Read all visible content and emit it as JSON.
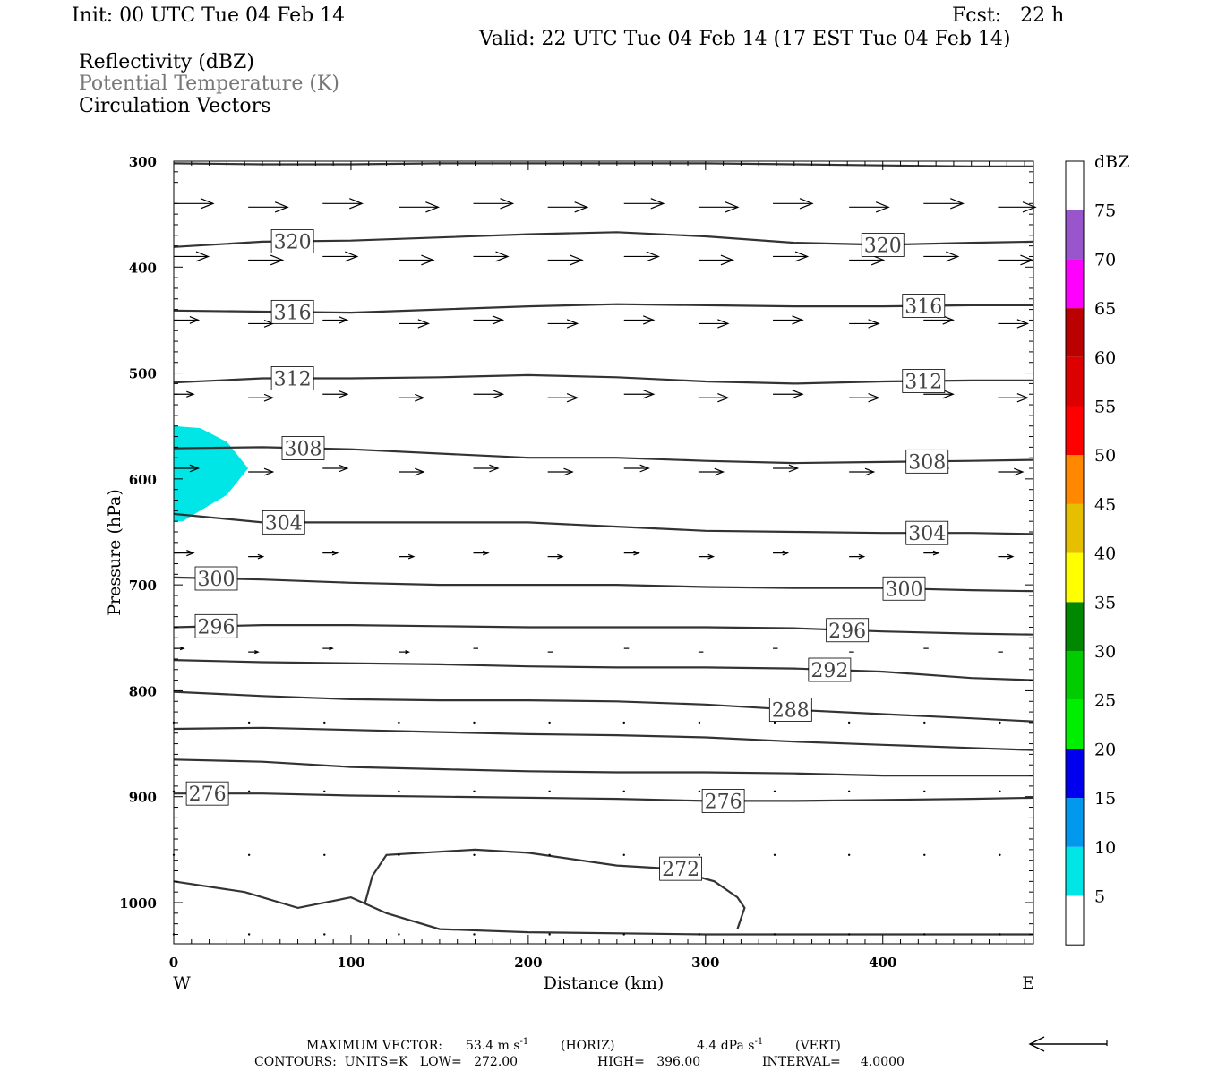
{
  "header": {
    "init": "Init: 00 UTC Tue 04 Feb 14",
    "fcst": "Fcst:   22 h",
    "valid": "Valid: 22 UTC Tue 04 Feb 14 (17 EST Tue 04 Feb 14)",
    "legend": [
      "Reflectivity (dBZ)",
      "Potential Temperature (K)",
      "Circulation Vectors"
    ]
  },
  "chart_data": {
    "type": "contour-cross-section",
    "xlabel": "Distance (km)",
    "ylabel": "Pressure (hPa)",
    "xlim": [
      0,
      485
    ],
    "ylim": [
      300,
      1030
    ],
    "x_ticks": [
      0,
      100,
      200,
      300,
      400
    ],
    "y_ticks": [
      300,
      400,
      500,
      600,
      700,
      800,
      900,
      1000
    ],
    "x_end_labels": {
      "left": "W",
      "right": "E"
    },
    "x": [
      0,
      50,
      100,
      150,
      200,
      250,
      300,
      350,
      400,
      450,
      485
    ],
    "isentropes": [
      {
        "theta": "",
        "p": [
          302,
          303,
          303,
          302,
          302,
          302,
          302,
          303,
          304,
          305,
          305
        ]
      },
      {
        "theta": "320",
        "p": [
          381,
          376,
          375,
          372,
          369,
          367,
          371,
          377,
          379,
          377,
          376
        ]
      },
      {
        "theta": "316",
        "p": [
          441,
          442,
          443,
          440,
          437,
          435,
          436,
          437,
          437,
          436,
          436
        ]
      },
      {
        "theta": "312",
        "p": [
          509,
          505,
          505,
          504,
          502,
          504,
          508,
          510,
          508,
          507,
          507
        ]
      },
      {
        "theta": "308",
        "p": [
          571,
          570,
          572,
          576,
          580,
          580,
          583,
          585,
          584,
          583,
          582
        ]
      },
      {
        "theta": "304",
        "p": [
          633,
          641,
          641,
          641,
          641,
          645,
          649,
          650,
          651,
          651,
          652
        ]
      },
      {
        "theta": "300",
        "p": [
          693,
          695,
          698,
          700,
          700,
          700,
          702,
          703,
          703,
          705,
          706
        ]
      },
      {
        "theta": "296",
        "p": [
          740,
          738,
          738,
          739,
          740,
          740,
          740,
          741,
          744,
          746,
          747
        ]
      },
      {
        "theta": "292",
        "p": [
          771,
          773,
          774,
          775,
          777,
          778,
          778,
          779,
          782,
          788,
          790
        ]
      },
      {
        "theta": "288",
        "p": [
          801,
          805,
          808,
          809,
          809,
          810,
          813,
          818,
          822,
          826,
          829
        ]
      },
      {
        "theta": "",
        "p": [
          836,
          835,
          837,
          839,
          841,
          842,
          844,
          848,
          851,
          854,
          856
        ]
      },
      {
        "theta": "",
        "p": [
          865,
          867,
          872,
          874,
          876,
          877,
          877,
          878,
          880,
          880,
          880
        ]
      },
      {
        "theta": "276",
        "p": [
          897,
          897,
          899,
          900,
          901,
          902,
          904,
          904,
          903,
          902,
          901
        ]
      }
    ],
    "contour_272": {
      "theta": "272",
      "x": [
        108,
        112,
        120,
        150,
        170,
        200,
        250,
        280,
        305,
        318,
        322,
        320,
        318
      ],
      "p": [
        1000,
        975,
        955,
        952,
        950,
        953,
        965,
        968,
        980,
        995,
        1005,
        1015,
        1025
      ]
    },
    "surface_line": {
      "x": [
        0,
        40,
        70,
        100,
        120,
        150,
        200,
        300,
        400,
        485
      ],
      "p": [
        980,
        990,
        1005,
        995,
        1010,
        1025,
        1028,
        1030,
        1030,
        1030
      ]
    },
    "reflectivity_area": {
      "dbz": "5-10",
      "x": [
        0,
        15,
        30,
        42,
        30,
        15,
        5,
        0
      ],
      "p": [
        550,
        552,
        565,
        590,
        615,
        630,
        640,
        640
      ]
    },
    "vectors": [
      {
        "p": 340,
        "x": [
          0,
          42,
          84,
          127,
          169,
          211,
          254,
          296,
          338,
          381,
          423,
          465
        ],
        "u": [
          8,
          8,
          8,
          8,
          8,
          8,
          8,
          8,
          8,
          8,
          8,
          8
        ]
      },
      {
        "p": 390,
        "x": [
          0,
          42,
          84,
          127,
          169,
          211,
          254,
          296,
          338,
          381,
          423,
          465
        ],
        "u": [
          7,
          7,
          7,
          7,
          7,
          7,
          7,
          7,
          7,
          7,
          7,
          7
        ]
      },
      {
        "p": 450,
        "x": [
          0,
          42,
          84,
          127,
          169,
          211,
          254,
          296,
          338,
          381,
          423,
          465
        ],
        "u": [
          5,
          5,
          5,
          6,
          6,
          6,
          6,
          6,
          6,
          6,
          6,
          6
        ]
      },
      {
        "p": 520,
        "x": [
          0,
          42,
          84,
          127,
          169,
          211,
          254,
          296,
          338,
          381,
          423,
          465
        ],
        "u": [
          4,
          5,
          5,
          5,
          6,
          6,
          6,
          6,
          6,
          6,
          6,
          6
        ]
      },
      {
        "p": 590,
        "x": [
          0,
          42,
          84,
          127,
          169,
          211,
          254,
          296,
          338,
          381,
          423,
          465
        ],
        "u": [
          5,
          5,
          5,
          5,
          5,
          5,
          5,
          5,
          5,
          5,
          5,
          5
        ]
      },
      {
        "p": 670,
        "x": [
          0,
          42,
          84,
          127,
          169,
          211,
          254,
          296,
          338,
          381,
          423,
          465
        ],
        "u": [
          4,
          3,
          3,
          3,
          3,
          3,
          3,
          3,
          3,
          3,
          3,
          3
        ]
      },
      {
        "p": 760,
        "x": [
          0,
          42,
          84,
          127,
          169,
          211,
          254,
          296,
          338,
          381,
          423,
          465
        ],
        "u": [
          2,
          2,
          2,
          2,
          1,
          1,
          1,
          1,
          1,
          1,
          1,
          1
        ]
      }
    ],
    "colorbar": {
      "unit": "dBZ",
      "labels": [
        "5",
        "10",
        "15",
        "20",
        "25",
        "30",
        "35",
        "40",
        "45",
        "50",
        "55",
        "60",
        "65",
        "70",
        "75"
      ],
      "colors": [
        "#ffffff",
        "#00e6e6",
        "#0099ee",
        "#0000ee",
        "#00ee00",
        "#00cc00",
        "#008800",
        "#ffff00",
        "#e6c000",
        "#ff8800",
        "#ff0000",
        "#dd0000",
        "#bb0000",
        "#ff00ff",
        "#9955cc",
        "#ffffff"
      ]
    }
  },
  "footer": {
    "max_vector_label": "MAXIMUM VECTOR:",
    "horiz": "53.4 m s",
    "horiz_tail": "(HORIZ)",
    "vert": "4.4 dPa s",
    "vert_tail": "(VERT)",
    "exp": "-1",
    "contours": "CONTOURS:  UNITS=K   LOW=   272.00",
    "high": "HIGH=   396.00",
    "interval": "INTERVAL=     4.0000"
  }
}
